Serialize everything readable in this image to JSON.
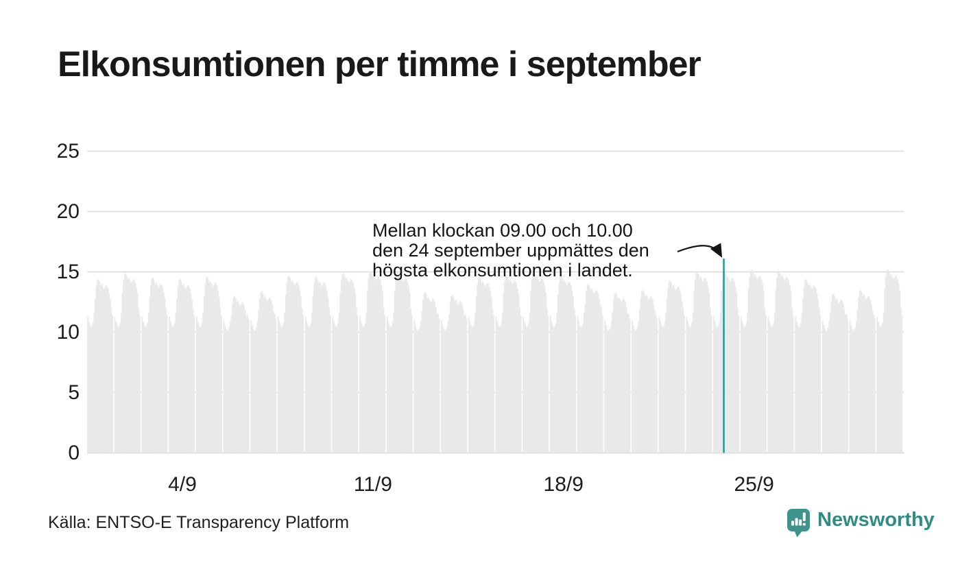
{
  "title": "Elkonsumtionen per timme i september",
  "annotation": {
    "line1": "Mellan klockan 09.00 och 10.00",
    "line2": "den 24 september uppmättes den",
    "line3": "högsta elkonsumtionen i landet."
  },
  "source": "Källa: ENTSO-E Transparency Platform",
  "logo": {
    "text": "Newsworthy",
    "icon": "newsworthy-speech-bubble-bar-chart-icon"
  },
  "colors": {
    "bar": "#e9e9e9",
    "highlight": "#2d9c93",
    "grid": "#d9d9d9",
    "text": "#1a1a1a",
    "logo_icon_teal": "#3e948c",
    "logo_text_teal": "#2f8c85",
    "arrow": "#141414"
  },
  "chart_data": {
    "type": "bar",
    "title": "Elkonsumtionen per timme i september",
    "xlabel": "",
    "ylabel": "",
    "ylim": [
      0,
      25
    ],
    "grid": "horizontal",
    "y_ticks": [
      0,
      5,
      10,
      15,
      20,
      25
    ],
    "x_ticks": [
      {
        "label": "4/9",
        "day": 4
      },
      {
        "label": "11/9",
        "day": 11
      },
      {
        "label": "18/9",
        "day": 18
      },
      {
        "label": "25/9",
        "day": 25
      }
    ],
    "highlight": {
      "date": "24/9",
      "hour": 9,
      "value": 16.1,
      "note": "högsta elkonsumtionen"
    },
    "days": [
      {
        "date": "1/9",
        "values": [
          11.3,
          10.9,
          10.6,
          10.4,
          10.5,
          10.8,
          11.6,
          12.8,
          13.8,
          14.3,
          14.4,
          14.2,
          13.9,
          14.0,
          13.8,
          13.6,
          13.7,
          13.9,
          13.8,
          13.6,
          13.2,
          12.7,
          12.0,
          11.4
        ]
      },
      {
        "date": "2/9",
        "values": [
          11.3,
          10.9,
          10.6,
          10.4,
          10.5,
          10.8,
          11.6,
          13.3,
          14.3,
          14.8,
          14.9,
          14.7,
          14.4,
          14.5,
          14.3,
          14.1,
          14.2,
          14.4,
          14.3,
          14.1,
          13.7,
          13.2,
          12.0,
          11.4
        ]
      },
      {
        "date": "3/9",
        "values": [
          11.3,
          10.9,
          10.6,
          10.4,
          10.5,
          10.8,
          11.6,
          12.9,
          13.9,
          14.4,
          14.5,
          14.3,
          14.0,
          14.1,
          13.9,
          13.7,
          13.8,
          14.0,
          13.9,
          13.7,
          13.3,
          12.8,
          12.0,
          11.4
        ]
      },
      {
        "date": "4/9",
        "values": [
          11.3,
          10.9,
          10.6,
          10.4,
          10.5,
          10.8,
          11.6,
          12.8,
          13.8,
          14.3,
          14.4,
          14.2,
          13.9,
          14.0,
          13.8,
          13.6,
          13.7,
          13.9,
          13.8,
          13.6,
          13.2,
          12.7,
          12.0,
          11.4
        ]
      },
      {
        "date": "5/9",
        "values": [
          11.3,
          10.9,
          10.6,
          10.4,
          10.5,
          10.8,
          11.6,
          13.0,
          14.0,
          14.5,
          14.6,
          14.4,
          14.1,
          14.2,
          14.0,
          13.8,
          13.9,
          14.1,
          14.0,
          13.8,
          13.4,
          12.9,
          12.0,
          11.4
        ]
      },
      {
        "date": "6/9",
        "values": [
          11.0,
          10.6,
          10.3,
          10.1,
          10.2,
          10.4,
          10.9,
          11.4,
          12.4,
          12.9,
          13.0,
          12.8,
          12.5,
          12.6,
          12.4,
          12.2,
          12.3,
          12.5,
          12.4,
          12.2,
          11.8,
          11.3,
          11.5,
          11.1
        ]
      },
      {
        "date": "7/9",
        "values": [
          11.0,
          10.6,
          10.3,
          10.1,
          10.2,
          10.4,
          10.9,
          11.8,
          12.8,
          13.3,
          13.4,
          13.2,
          12.9,
          13.0,
          12.8,
          12.6,
          12.7,
          12.9,
          12.8,
          12.6,
          12.2,
          11.7,
          11.5,
          11.1
        ]
      },
      {
        "date": "8/9",
        "values": [
          11.3,
          10.9,
          10.6,
          10.4,
          10.5,
          10.8,
          11.6,
          13.1,
          14.1,
          14.6,
          14.7,
          14.5,
          14.2,
          14.3,
          14.1,
          13.9,
          14.0,
          14.2,
          14.1,
          13.9,
          13.5,
          13.0,
          12.0,
          11.4
        ]
      },
      {
        "date": "9/9",
        "values": [
          11.3,
          10.9,
          10.6,
          10.4,
          10.5,
          10.8,
          11.6,
          13.0,
          14.0,
          14.5,
          14.6,
          14.4,
          14.1,
          14.2,
          14.0,
          13.8,
          13.9,
          14.1,
          14.0,
          13.8,
          13.4,
          12.9,
          12.0,
          11.4
        ]
      },
      {
        "date": "10/9",
        "values": [
          11.3,
          10.9,
          10.6,
          10.4,
          10.5,
          10.8,
          11.6,
          13.3,
          14.3,
          14.8,
          14.9,
          14.7,
          14.4,
          14.5,
          14.3,
          14.1,
          14.2,
          14.4,
          14.3,
          14.1,
          13.7,
          13.2,
          12.0,
          11.4
        ]
      },
      {
        "date": "11/9",
        "values": [
          11.3,
          10.9,
          10.6,
          10.4,
          10.5,
          10.8,
          11.6,
          13.5,
          14.5,
          15.0,
          15.1,
          14.9,
          14.6,
          14.7,
          14.5,
          14.3,
          14.4,
          14.6,
          14.5,
          14.3,
          13.9,
          13.4,
          12.0,
          11.4
        ]
      },
      {
        "date": "12/9",
        "values": [
          11.3,
          10.9,
          10.6,
          10.4,
          10.5,
          10.8,
          11.6,
          13.4,
          14.4,
          14.9,
          15.0,
          14.8,
          14.5,
          14.6,
          14.4,
          14.2,
          14.3,
          14.5,
          14.4,
          14.2,
          13.8,
          13.3,
          12.0,
          11.4
        ]
      },
      {
        "date": "13/9",
        "values": [
          11.0,
          10.6,
          10.3,
          10.1,
          10.2,
          10.4,
          10.9,
          11.7,
          12.7,
          13.2,
          13.3,
          13.1,
          12.8,
          12.9,
          12.7,
          12.5,
          12.6,
          12.8,
          12.7,
          12.5,
          12.1,
          11.6,
          11.5,
          11.1
        ]
      },
      {
        "date": "14/9",
        "values": [
          11.0,
          10.6,
          10.3,
          10.1,
          10.2,
          10.4,
          10.9,
          11.5,
          12.5,
          13.0,
          13.1,
          12.9,
          12.6,
          12.7,
          12.5,
          12.3,
          12.4,
          12.6,
          12.5,
          12.3,
          11.9,
          11.4,
          11.5,
          11.1
        ]
      },
      {
        "date": "15/9",
        "values": [
          11.3,
          10.9,
          10.6,
          10.4,
          10.5,
          10.8,
          11.6,
          13.0,
          14.0,
          14.5,
          14.6,
          14.4,
          14.1,
          14.2,
          14.0,
          13.8,
          13.9,
          14.1,
          14.0,
          13.8,
          13.4,
          12.9,
          12.0,
          11.4
        ]
      },
      {
        "date": "16/9",
        "values": [
          11.3,
          10.9,
          10.6,
          10.4,
          10.5,
          10.8,
          11.6,
          13.2,
          14.2,
          14.7,
          14.8,
          14.6,
          14.3,
          14.4,
          14.2,
          14.0,
          14.1,
          14.3,
          14.2,
          14.0,
          13.6,
          13.1,
          12.0,
          11.4
        ]
      },
      {
        "date": "17/9",
        "values": [
          11.3,
          10.9,
          10.6,
          10.4,
          10.5,
          10.8,
          11.6,
          13.4,
          14.4,
          14.9,
          15.0,
          14.8,
          14.5,
          14.6,
          14.4,
          14.2,
          14.3,
          14.5,
          14.4,
          14.2,
          13.8,
          13.3,
          12.0,
          11.4
        ]
      },
      {
        "date": "18/9",
        "values": [
          11.3,
          10.9,
          10.6,
          10.4,
          10.5,
          10.8,
          11.6,
          13.1,
          14.1,
          14.6,
          14.7,
          14.5,
          14.2,
          14.3,
          14.1,
          13.9,
          14.0,
          14.2,
          14.1,
          13.9,
          13.5,
          13.0,
          12.0,
          11.4
        ]
      },
      {
        "date": "19/9",
        "values": [
          11.3,
          10.9,
          10.6,
          10.4,
          10.5,
          10.8,
          11.6,
          12.4,
          13.4,
          13.9,
          14.0,
          13.8,
          13.5,
          13.6,
          13.4,
          13.2,
          13.3,
          13.5,
          13.4,
          13.2,
          12.8,
          12.3,
          12.0,
          11.4
        ]
      },
      {
        "date": "20/9",
        "values": [
          11.0,
          10.6,
          10.3,
          10.1,
          10.2,
          10.4,
          10.9,
          11.7,
          12.7,
          13.2,
          13.3,
          13.1,
          12.8,
          12.9,
          12.7,
          12.5,
          12.6,
          12.8,
          12.7,
          12.5,
          12.1,
          11.6,
          11.5,
          11.1
        ]
      },
      {
        "date": "21/9",
        "values": [
          11.0,
          10.6,
          10.3,
          10.1,
          10.2,
          10.4,
          10.9,
          11.9,
          12.9,
          13.4,
          13.5,
          13.3,
          13.0,
          13.1,
          12.9,
          12.7,
          12.8,
          13.0,
          12.9,
          12.7,
          12.3,
          11.8,
          11.5,
          11.1
        ]
      },
      {
        "date": "22/9",
        "values": [
          11.3,
          10.9,
          10.6,
          10.4,
          10.5,
          10.8,
          11.6,
          12.7,
          13.7,
          14.2,
          14.3,
          14.1,
          13.8,
          13.9,
          13.7,
          13.5,
          13.6,
          13.8,
          13.7,
          13.5,
          13.1,
          12.6,
          12.0,
          11.4
        ]
      },
      {
        "date": "23/9",
        "values": [
          11.3,
          10.9,
          10.6,
          10.4,
          10.5,
          10.8,
          11.6,
          13.4,
          14.4,
          14.9,
          15.0,
          14.8,
          14.5,
          14.6,
          14.4,
          14.2,
          14.3,
          14.5,
          14.4,
          14.2,
          13.8,
          13.3,
          12.0,
          11.4
        ]
      },
      {
        "date": "24/9",
        "values": [
          11.3,
          10.9,
          10.6,
          10.4,
          10.5,
          10.8,
          11.6,
          13.4,
          14.4,
          16.1,
          15.0,
          14.8,
          14.5,
          14.6,
          14.4,
          14.2,
          14.3,
          14.5,
          14.4,
          14.2,
          13.8,
          13.3,
          12.0,
          11.4
        ]
      },
      {
        "date": "25/9",
        "values": [
          11.3,
          10.9,
          10.6,
          10.4,
          10.5,
          10.8,
          11.6,
          13.6,
          14.6,
          15.1,
          15.2,
          15.0,
          14.7,
          14.8,
          14.6,
          14.4,
          14.5,
          14.7,
          14.6,
          14.4,
          14.0,
          13.5,
          12.0,
          11.4
        ]
      },
      {
        "date": "26/9",
        "values": [
          11.3,
          10.9,
          10.6,
          10.4,
          10.5,
          10.8,
          11.6,
          13.5,
          14.5,
          15.0,
          15.1,
          14.9,
          14.6,
          14.7,
          14.5,
          14.3,
          14.4,
          14.6,
          14.5,
          14.3,
          13.9,
          13.4,
          12.0,
          11.4
        ]
      },
      {
        "date": "27/9",
        "values": [
          11.3,
          10.9,
          10.6,
          10.4,
          10.5,
          10.8,
          11.6,
          12.8,
          13.8,
          14.3,
          14.4,
          14.2,
          13.9,
          14.0,
          13.8,
          13.6,
          13.7,
          13.9,
          13.8,
          13.6,
          13.2,
          12.7,
          12.0,
          11.4
        ]
      },
      {
        "date": "28/9",
        "values": [
          11.0,
          10.6,
          10.3,
          10.1,
          10.2,
          10.4,
          10.9,
          11.6,
          12.6,
          13.1,
          13.2,
          13.0,
          12.7,
          12.8,
          12.6,
          12.4,
          12.5,
          12.7,
          12.6,
          12.4,
          12.0,
          11.5,
          11.5,
          11.1
        ]
      },
      {
        "date": "29/9",
        "values": [
          11.0,
          10.6,
          10.3,
          10.1,
          10.2,
          10.4,
          10.9,
          11.9,
          12.9,
          13.4,
          13.5,
          13.3,
          13.0,
          13.1,
          12.9,
          12.7,
          12.8,
          13.0,
          12.9,
          12.7,
          12.3,
          11.8,
          11.5,
          11.1
        ]
      },
      {
        "date": "30/9",
        "values": [
          11.3,
          10.9,
          10.6,
          10.4,
          10.5,
          10.8,
          11.6,
          13.6,
          14.6,
          15.1,
          15.2,
          15.0,
          14.7,
          14.8,
          14.6,
          14.4,
          14.5,
          14.7,
          14.6,
          14.4,
          14.0,
          13.5,
          12.0,
          11.4
        ]
      }
    ]
  }
}
